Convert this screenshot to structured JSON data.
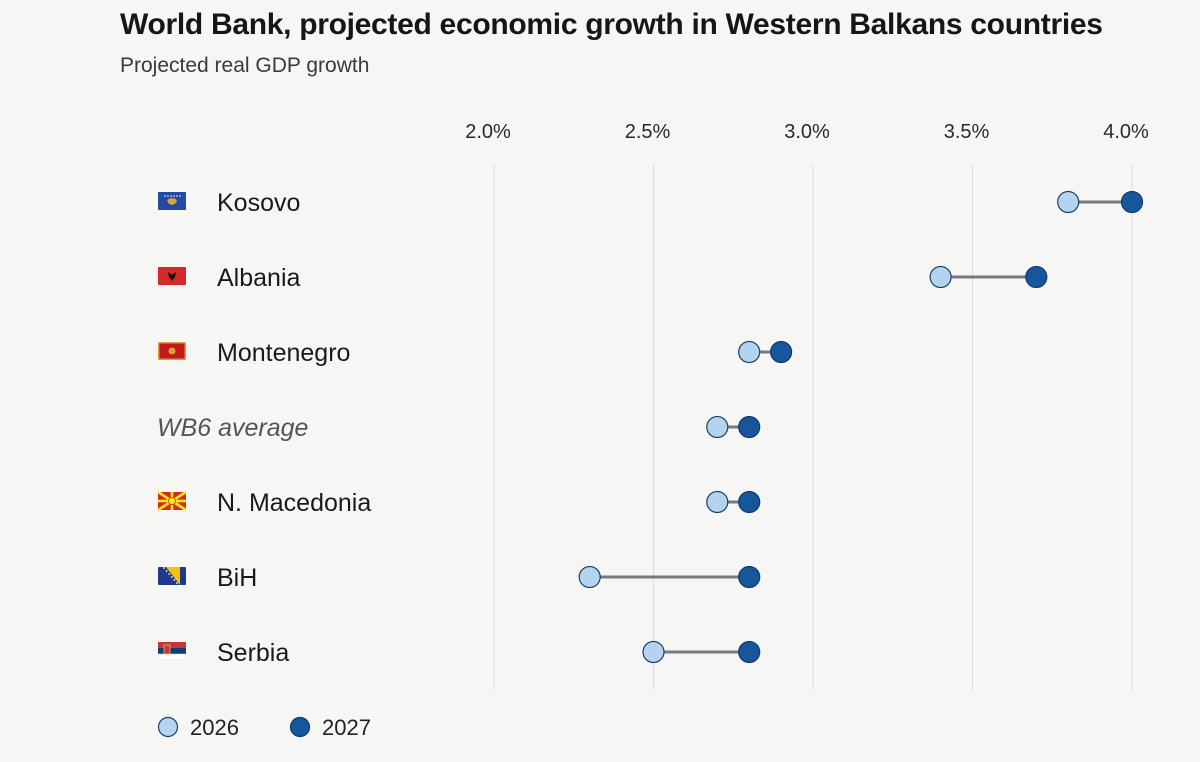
{
  "title": "World Bank, projected economic growth in Western Balkans countries",
  "subtitle": "Projected real GDP growth",
  "colors": {
    "background": "#f6f6f5",
    "series_2026": "#b3d4f0",
    "series_2027": "#17569b",
    "connector": "#7a7a7a",
    "grid": "#dcdcdc"
  },
  "chart_data": {
    "type": "dumbbell",
    "title": "World Bank, projected economic growth in Western Balkans countries",
    "subtitle": "Projected real GDP growth",
    "x_ticks": [
      "2.0%",
      "2.5%",
      "3.0%",
      "3.5%",
      "4.0%"
    ],
    "x_tick_values": [
      2.0,
      2.5,
      3.0,
      3.5,
      4.0
    ],
    "xlim": [
      1.9,
      4.0
    ],
    "grid": "vertical",
    "legend_position": "bottom-left",
    "series": [
      {
        "name": "2026",
        "color": "#b3d4f0"
      },
      {
        "name": "2027",
        "color": "#17569b"
      }
    ],
    "rows": [
      {
        "label": "Kosovo",
        "flag": "kosovo-flag",
        "v2026": 3.8,
        "v2027": 4.0,
        "average": false
      },
      {
        "label": "Albania",
        "flag": "albania-flag",
        "v2026": 3.4,
        "v2027": 3.7,
        "average": false
      },
      {
        "label": "Montenegro",
        "flag": "montenegro-flag",
        "v2026": 2.8,
        "v2027": 2.9,
        "average": false
      },
      {
        "label": "WB6 average",
        "flag": "",
        "v2026": 2.7,
        "v2027": 2.8,
        "average": true
      },
      {
        "label": "N. Macedonia",
        "flag": "north-macedonia-flag",
        "v2026": 2.7,
        "v2027": 2.8,
        "average": false
      },
      {
        "label": "BiH",
        "flag": "bosnia-flag",
        "v2026": 2.3,
        "v2027": 2.8,
        "average": false
      },
      {
        "label": "Serbia",
        "flag": "serbia-flag",
        "v2026": 2.5,
        "v2027": 2.8,
        "average": false
      }
    ]
  }
}
